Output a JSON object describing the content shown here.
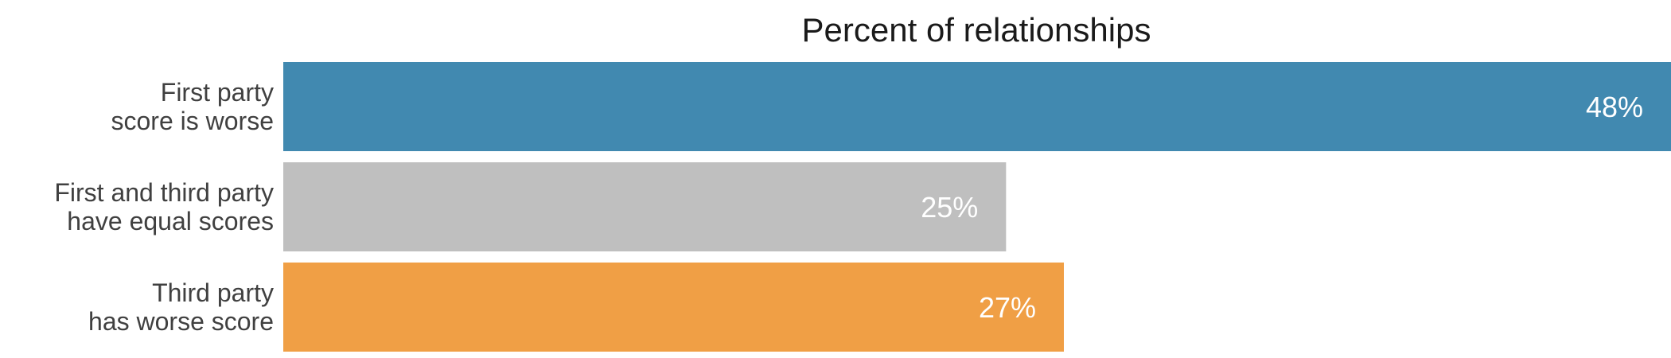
{
  "chart_data": {
    "type": "bar",
    "orientation": "horizontal",
    "title": "Percent of relationships",
    "categories": [
      [
        "First party",
        "score is worse"
      ],
      [
        "First and third party",
        "have equal scores"
      ],
      [
        "Third party",
        "has worse score"
      ]
    ],
    "values": [
      48,
      25,
      27
    ],
    "value_labels": [
      "48%",
      "25%",
      "27%"
    ],
    "colors": [
      "#4189b0",
      "#bfbfbf",
      "#f09f45"
    ],
    "xlim": [
      0,
      48
    ],
    "grid": false,
    "legend": "none"
  }
}
